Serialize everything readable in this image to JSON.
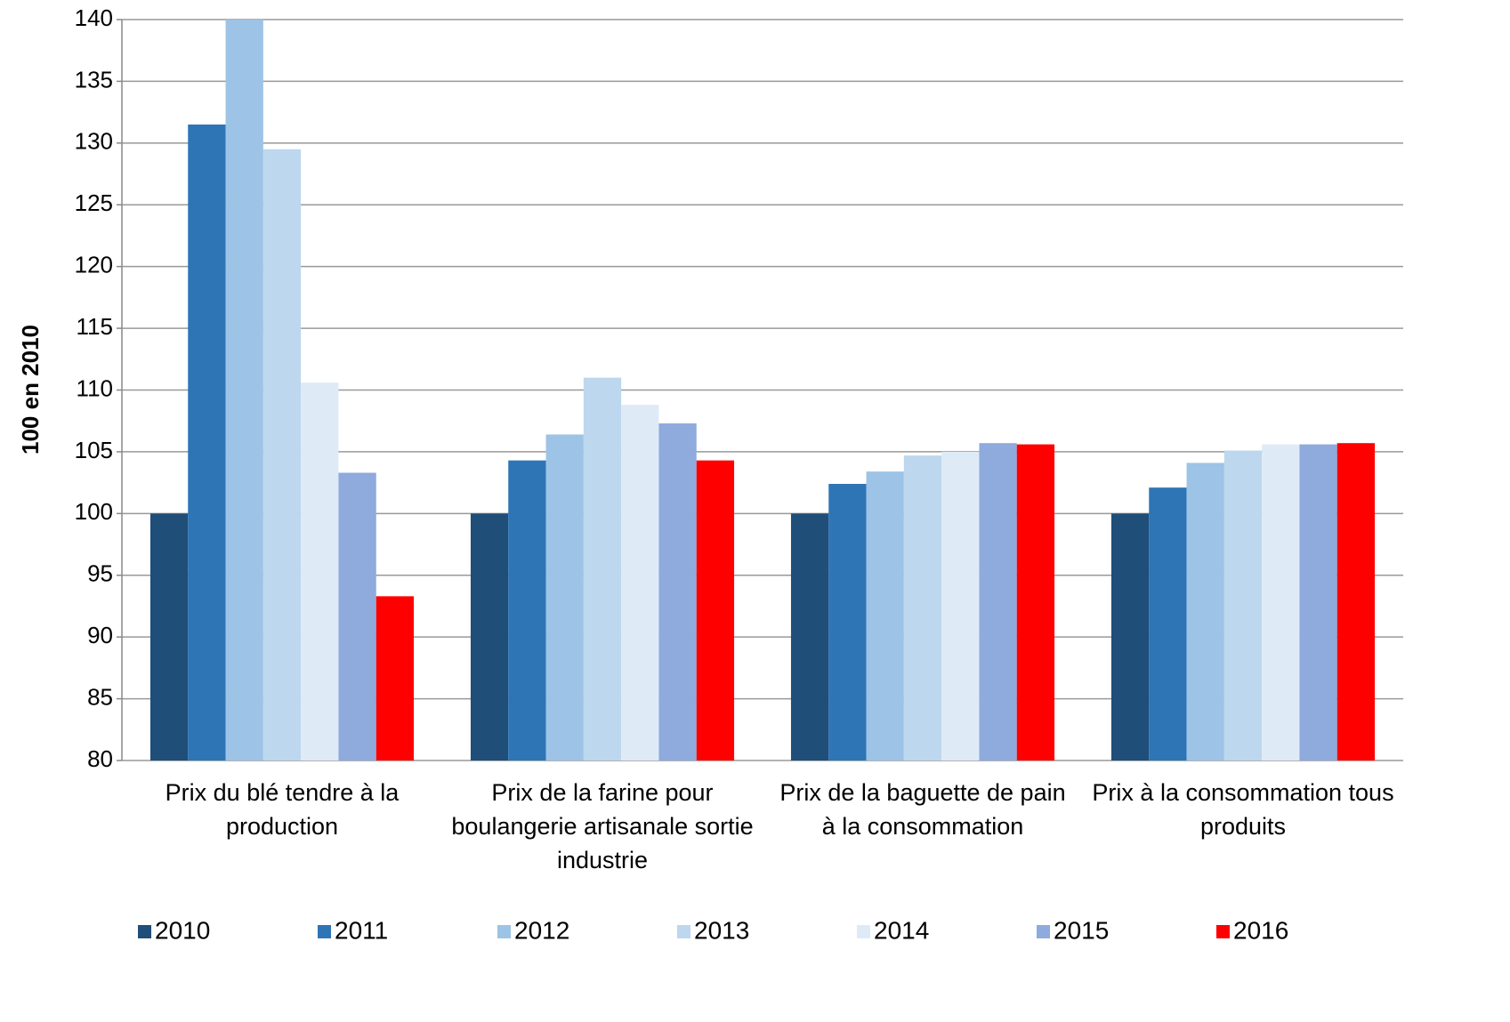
{
  "chart_data": {
    "type": "bar",
    "y_label": "100 en 2010",
    "categories": [
      "Prix du blé tendre à la production",
      "Prix  de la farine pour boulangerie artisanale sortie industrie",
      "Prix de la baguette de pain à la consommation",
      "Prix à la consommation tous produits"
    ],
    "series": [
      {
        "name": "2010",
        "color": "#1f4e79",
        "values": [
          100,
          100,
          100,
          100
        ]
      },
      {
        "name": "2011",
        "color": "#2e75b6",
        "values": [
          131.5,
          104.3,
          102.4,
          102.1
        ]
      },
      {
        "name": "2012",
        "color": "#9dc3e6",
        "values": [
          140,
          106.4,
          103.4,
          104.1
        ]
      },
      {
        "name": "2013",
        "color": "#bdd7ee",
        "values": [
          129.5,
          111,
          104.7,
          105.1
        ]
      },
      {
        "name": "2014",
        "color": "#deebf7",
        "values": [
          110.6,
          108.8,
          105,
          105.6
        ]
      },
      {
        "name": "2015",
        "color": "#8faadc",
        "values": [
          103.3,
          107.3,
          105.7,
          105.6
        ]
      },
      {
        "name": "2016",
        "color": "#ff0000",
        "values": [
          93.3,
          104.3,
          105.6,
          105.7
        ]
      }
    ],
    "ylim": [
      80,
      140
    ],
    "yticks": [
      80,
      85,
      90,
      95,
      100,
      105,
      110,
      115,
      120,
      125,
      130,
      135,
      140
    ],
    "grid": true,
    "legend": "bottom"
  }
}
